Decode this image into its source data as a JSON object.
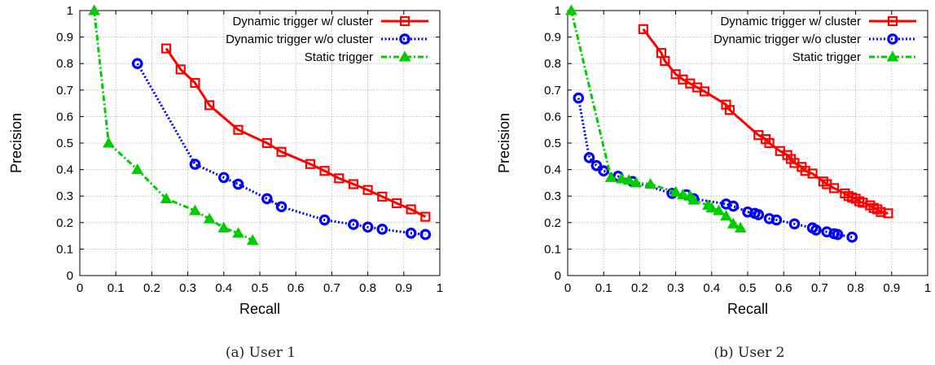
{
  "captions": [
    "(a) User 1",
    "(b) User 2"
  ],
  "chart_data": [
    {
      "type": "line",
      "title": "",
      "xlabel": "Recall",
      "ylabel": "Precision",
      "xlim": [
        0,
        1
      ],
      "ylim": [
        0,
        1
      ],
      "xticks": [
        "0",
        "0.1",
        "0.2",
        "0.3",
        "0.4",
        "0.5",
        "0.6",
        "0.7",
        "0.8",
        "0.9",
        "1"
      ],
      "yticks": [
        "0",
        "0.1",
        "0.2",
        "0.3",
        "0.4",
        "0.5",
        "0.6",
        "0.7",
        "0.8",
        "0.9",
        "1"
      ],
      "grid": true,
      "legend": "top-right",
      "series": [
        {
          "name": "Dynamic trigger w/ cluster",
          "color": "#ff0000",
          "marker": "square",
          "dash": "solid",
          "x": [
            0.24,
            0.28,
            0.32,
            0.36,
            0.44,
            0.52,
            0.56,
            0.64,
            0.68,
            0.72,
            0.76,
            0.8,
            0.84,
            0.88,
            0.92,
            0.96
          ],
          "y": [
            0.857,
            0.778,
            0.727,
            0.643,
            0.55,
            0.5,
            0.467,
            0.421,
            0.395,
            0.367,
            0.345,
            0.323,
            0.298,
            0.273,
            0.25,
            0.222
          ]
        },
        {
          "name": "Dynamic trigger w/o cluster",
          "color": "#0000ff",
          "marker": "circle",
          "dash": "dotted",
          "x": [
            0.16,
            0.32,
            0.4,
            0.44,
            0.52,
            0.56,
            0.68,
            0.76,
            0.8,
            0.84,
            0.92,
            0.96
          ],
          "y": [
            0.8,
            0.42,
            0.37,
            0.345,
            0.29,
            0.26,
            0.21,
            0.193,
            0.183,
            0.175,
            0.16,
            0.155
          ]
        },
        {
          "name": "Static trigger",
          "color": "#00cc00",
          "marker": "triangle",
          "dash": "dashdot",
          "x": [
            0.04,
            0.08,
            0.16,
            0.24,
            0.32,
            0.36,
            0.4,
            0.44,
            0.48
          ],
          "y": [
            1.0,
            0.5,
            0.4,
            0.29,
            0.245,
            0.214,
            0.18,
            0.16,
            0.133
          ]
        }
      ]
    },
    {
      "type": "line",
      "title": "",
      "xlabel": "Recall",
      "ylabel": "Precision",
      "xlim": [
        0,
        1
      ],
      "ylim": [
        0,
        1
      ],
      "xticks": [
        "0",
        "0.1",
        "0.2",
        "0.3",
        "0.4",
        "0.5",
        "0.6",
        "0.7",
        "0.8",
        "0.9",
        "1"
      ],
      "yticks": [
        "0",
        "0.1",
        "0.2",
        "0.3",
        "0.4",
        "0.5",
        "0.6",
        "0.7",
        "0.8",
        "0.9",
        "1"
      ],
      "grid": true,
      "legend": "top-right",
      "series": [
        {
          "name": "Dynamic trigger w/ cluster",
          "color": "#ff0000",
          "marker": "square",
          "dash": "solid",
          "x": [
            0.21,
            0.26,
            0.27,
            0.3,
            0.32,
            0.34,
            0.36,
            0.38,
            0.44,
            0.45,
            0.53,
            0.55,
            0.56,
            0.59,
            0.61,
            0.62,
            0.63,
            0.65,
            0.66,
            0.68,
            0.71,
            0.72,
            0.74,
            0.77,
            0.78,
            0.79,
            0.8,
            0.81,
            0.82,
            0.84,
            0.85,
            0.86,
            0.87,
            0.89
          ],
          "y": [
            0.93,
            0.84,
            0.81,
            0.76,
            0.74,
            0.725,
            0.71,
            0.695,
            0.645,
            0.625,
            0.53,
            0.515,
            0.5,
            0.47,
            0.455,
            0.44,
            0.425,
            0.41,
            0.395,
            0.385,
            0.355,
            0.345,
            0.33,
            0.31,
            0.3,
            0.295,
            0.29,
            0.28,
            0.275,
            0.265,
            0.255,
            0.25,
            0.24,
            0.235
          ]
        },
        {
          "name": "Dynamic trigger w/o cluster",
          "color": "#0000ff",
          "marker": "circle",
          "dash": "dotted",
          "x": [
            0.03,
            0.06,
            0.08,
            0.1,
            0.14,
            0.18,
            0.29,
            0.33,
            0.35,
            0.44,
            0.46,
            0.5,
            0.52,
            0.53,
            0.56,
            0.58,
            0.63,
            0.68,
            0.69,
            0.72,
            0.74,
            0.75,
            0.79
          ],
          "y": [
            0.67,
            0.445,
            0.415,
            0.395,
            0.375,
            0.355,
            0.31,
            0.305,
            0.29,
            0.27,
            0.262,
            0.24,
            0.235,
            0.23,
            0.215,
            0.21,
            0.195,
            0.18,
            0.172,
            0.165,
            0.158,
            0.155,
            0.145
          ]
        },
        {
          "name": "Static trigger",
          "color": "#00cc00",
          "marker": "triangle",
          "dash": "dashdot",
          "x": [
            0.01,
            0.12,
            0.15,
            0.17,
            0.19,
            0.23,
            0.3,
            0.32,
            0.34,
            0.35,
            0.39,
            0.4,
            0.42,
            0.44,
            0.46,
            0.48
          ],
          "y": [
            1.0,
            0.37,
            0.365,
            0.36,
            0.35,
            0.345,
            0.315,
            0.305,
            0.3,
            0.285,
            0.265,
            0.255,
            0.245,
            0.225,
            0.195,
            0.18
          ]
        }
      ]
    }
  ]
}
